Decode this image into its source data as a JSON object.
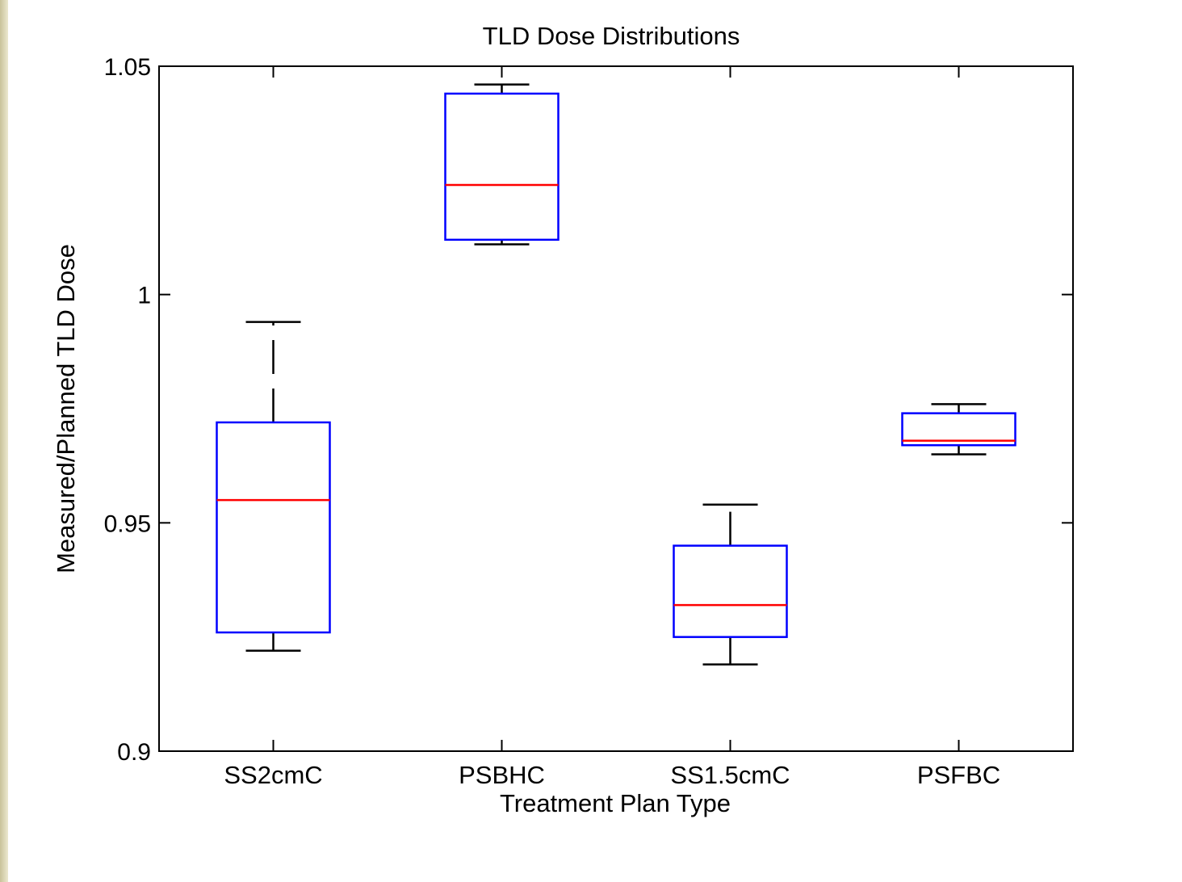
{
  "chart_data": {
    "type": "box",
    "title": "TLD Dose Distributions",
    "xlabel": "Treatment Plan Type",
    "ylabel": "Measured/Planned TLD Dose",
    "ylim": [
      0.9,
      1.05
    ],
    "yticks": [
      "0.9",
      "0.95",
      "1",
      "1.05"
    ],
    "ytick_values": [
      0.9,
      0.95,
      1.0,
      1.05
    ],
    "categories": [
      "SS2cmC",
      "PSBHC",
      "SS1.5cmC",
      "PSFBC"
    ],
    "boxes": [
      {
        "category": "SS2cmC",
        "whisker_low": 0.922,
        "q1": 0.926,
        "median": 0.955,
        "q3": 0.972,
        "whisker_high": 0.994
      },
      {
        "category": "PSBHC",
        "whisker_low": 1.011,
        "q1": 1.012,
        "median": 1.024,
        "q3": 1.044,
        "whisker_high": 1.046
      },
      {
        "category": "SS1.5cmC",
        "whisker_low": 0.919,
        "q1": 0.925,
        "median": 0.932,
        "q3": 0.945,
        "whisker_high": 0.954
      },
      {
        "category": "PSFBC",
        "whisker_low": 0.965,
        "q1": 0.967,
        "median": 0.968,
        "q3": 0.974,
        "whisker_high": 0.976
      }
    ],
    "colors": {
      "box": "#0000ff",
      "median": "#ff0000",
      "whisker": "#000000",
      "axes": "#000000"
    },
    "grid": false
  }
}
